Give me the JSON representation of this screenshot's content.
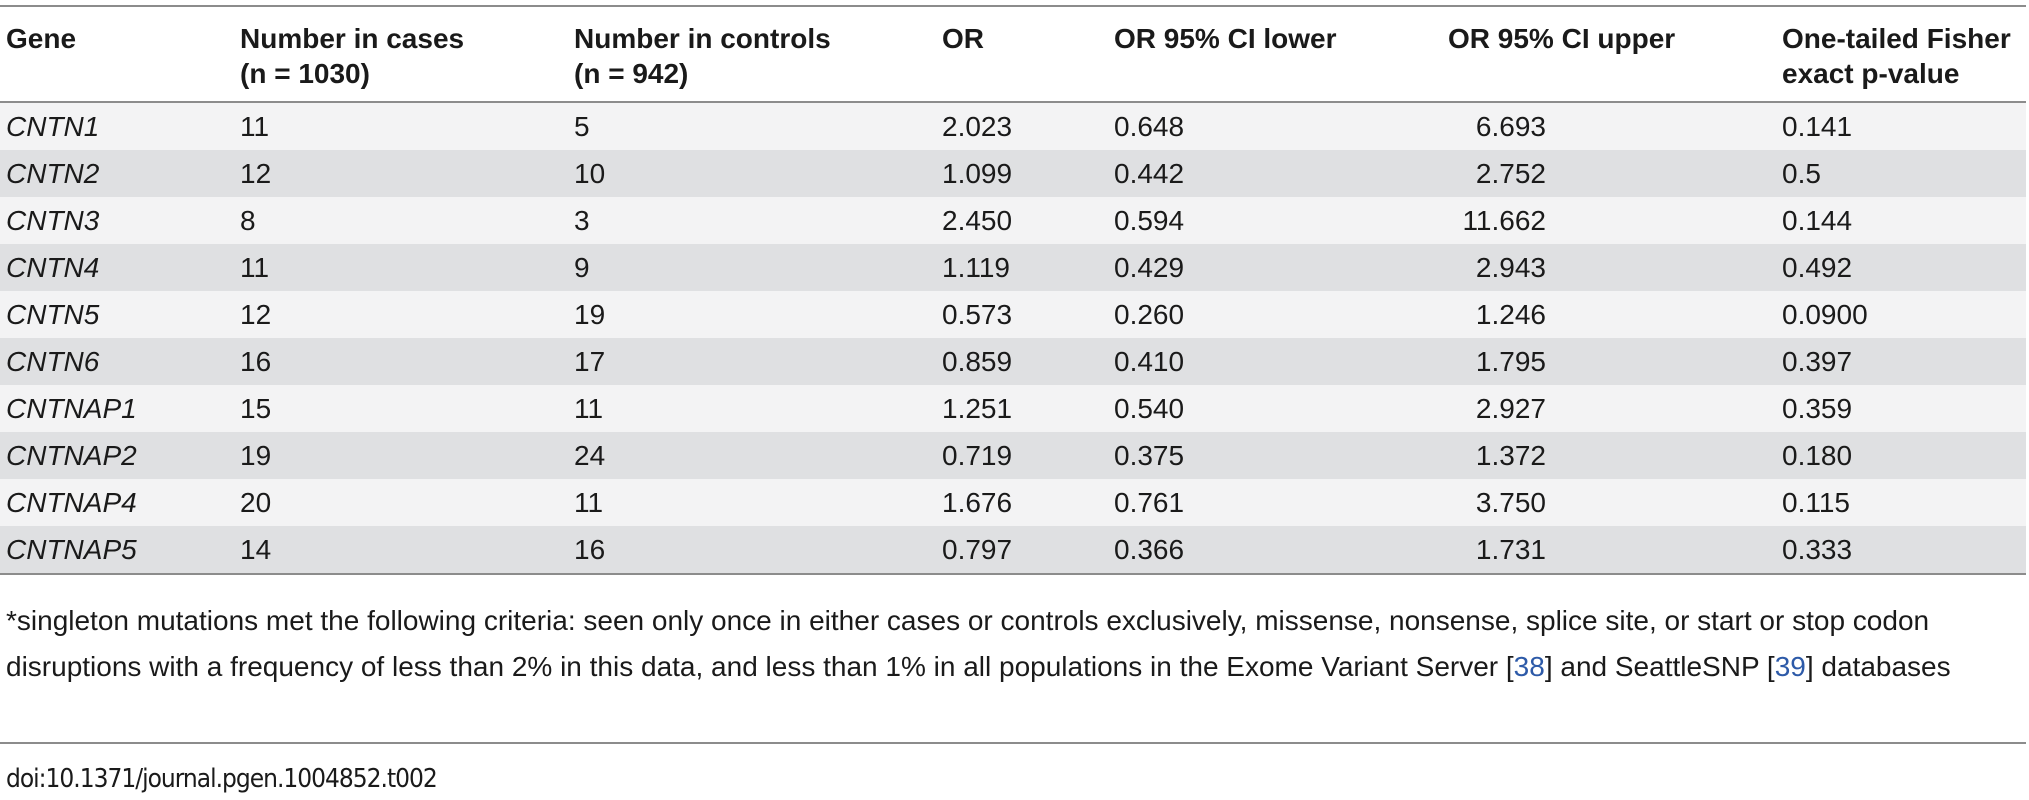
{
  "table": {
    "headers": [
      [
        "Gene"
      ],
      [
        "Number in cases",
        "(n = 1030)"
      ],
      [
        "Number in controls",
        "(n = 942)"
      ],
      [
        "OR"
      ],
      [
        "OR 95% CI lower"
      ],
      [
        "OR 95% CI upper"
      ],
      [
        "One-tailed Fisher",
        "exact p-value"
      ]
    ],
    "rows": [
      [
        "CNTN1",
        "11",
        "5",
        "2.023",
        "0.648",
        "6.693",
        "0.141"
      ],
      [
        "CNTN2",
        "12",
        "10",
        "1.099",
        "0.442",
        "2.752",
        "0.5"
      ],
      [
        "CNTN3",
        "8",
        "3",
        "2.450",
        "0.594",
        "11.662",
        "0.144"
      ],
      [
        "CNTN4",
        "11",
        "9",
        "1.119",
        "0.429",
        "2.943",
        "0.492"
      ],
      [
        "CNTN5",
        "12",
        "19",
        "0.573",
        "0.260",
        "1.246",
        "0.0900"
      ],
      [
        "CNTN6",
        "16",
        "17",
        "0.859",
        "0.410",
        "1.795",
        "0.397"
      ],
      [
        "CNTNAP1",
        "15",
        "11",
        "1.251",
        "0.540",
        "2.927",
        "0.359"
      ],
      [
        "CNTNAP2",
        "19",
        "24",
        "0.719",
        "0.375",
        "1.372",
        "0.180"
      ],
      [
        "CNTNAP4",
        "20",
        "11",
        "1.676",
        "0.761",
        "3.750",
        "0.115"
      ],
      [
        "CNTNAP5",
        "14",
        "16",
        "0.797",
        "0.366",
        "1.731",
        "0.333"
      ]
    ]
  },
  "footnote": {
    "text_1": "*singleton mutations met the following criteria: seen only once in either cases or controls exclusively, missense, nonsense, splice site, or start or stop codon disruptions with a frequency of less than 2% in this data, and less than 1% in all populations in the Exome Variant Server [",
    "ref_1": "38",
    "text_2": "] and SeattleSNP [",
    "ref_2": "39",
    "text_3": "] databases"
  },
  "doi": "doi:10.1371/journal.pgen.1004852.t002",
  "colors": {
    "link": "#2d5aa8",
    "row_light": "#f3f3f4",
    "row_dark": "#dfe0e2",
    "rule": "#8c8c8c"
  }
}
